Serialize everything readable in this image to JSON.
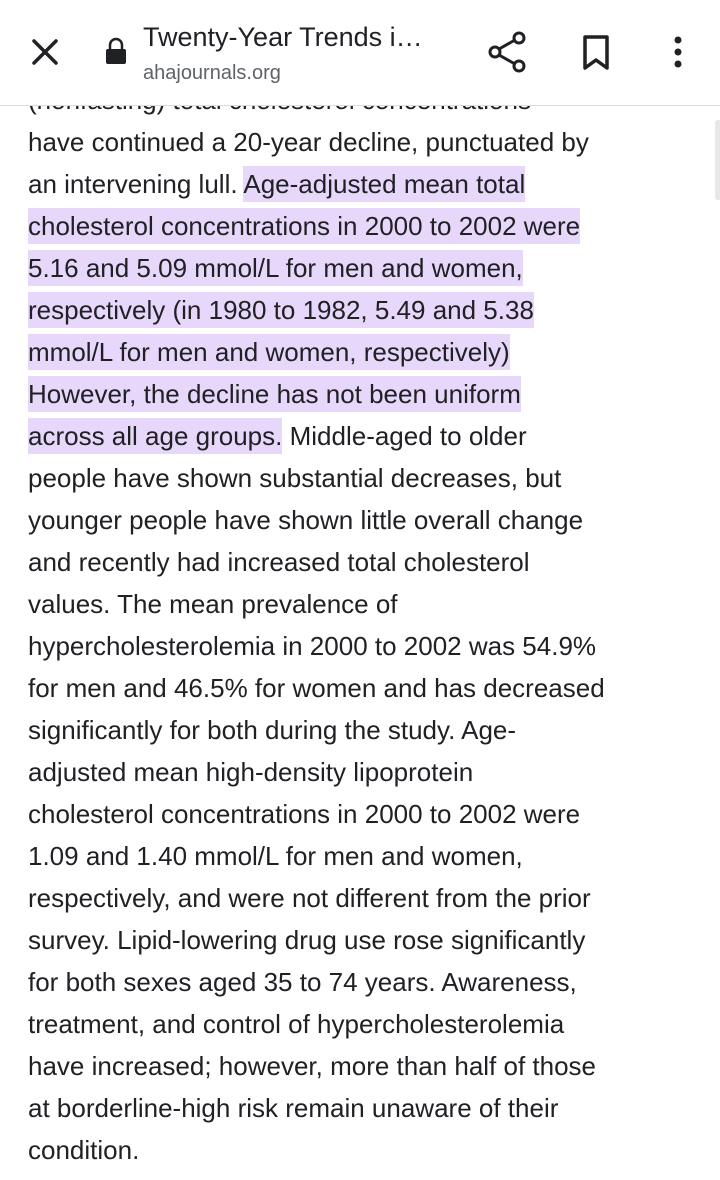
{
  "toolbar": {
    "title": "Twenty-Year Trends i…",
    "url": "ahajournals.org"
  },
  "lines": [
    [
      {
        "text": "(nonfasting) total cholesterol concentrations",
        "highlight": false
      }
    ],
    [
      {
        "text": "have continued a 20-year decline, punctuated by",
        "highlight": false
      }
    ],
    [
      {
        "text": "an intervening lull. ",
        "highlight": false
      },
      {
        "text": "Age-adjusted mean total",
        "highlight": true
      }
    ],
    [
      {
        "text": "cholesterol concentrations in 2000 to 2002 were",
        "highlight": true
      }
    ],
    [
      {
        "text": "5.16 and 5.09 mmol/L for men and women,",
        "highlight": true
      }
    ],
    [
      {
        "text": "respectively (in 1980 to 1982, 5.49 and 5.38",
        "highlight": true
      }
    ],
    [
      {
        "text": "mmol/L for men and women, respectively)",
        "highlight": true
      }
    ],
    [
      {
        "text": "However, the decline has not been uniform",
        "highlight": true
      }
    ],
    [
      {
        "text": "across all age groups.",
        "highlight": true
      },
      {
        "text": " Middle-aged to older",
        "highlight": false
      }
    ],
    [
      {
        "text": "people have shown substantial decreases, but",
        "highlight": false
      }
    ],
    [
      {
        "text": "younger people have shown little overall change",
        "highlight": false
      }
    ],
    [
      {
        "text": "and recently had increased total cholesterol",
        "highlight": false
      }
    ],
    [
      {
        "text": "values. The mean prevalence of",
        "highlight": false
      }
    ],
    [
      {
        "text": "hypercholesterolemia in 2000 to 2002 was 54.9%",
        "highlight": false
      }
    ],
    [
      {
        "text": "for men and 46.5% for women and has decreased",
        "highlight": false
      }
    ],
    [
      {
        "text": "significantly for both during the study. Age-",
        "highlight": false
      }
    ],
    [
      {
        "text": "adjusted mean high-density lipoprotein",
        "highlight": false
      }
    ],
    [
      {
        "text": "cholesterol concentrations in 2000 to 2002 were",
        "highlight": false
      }
    ],
    [
      {
        "text": "1.09 and 1.40 mmol/L for men and women,",
        "highlight": false
      }
    ],
    [
      {
        "text": "respectively, and were not different from the prior",
        "highlight": false
      }
    ],
    [
      {
        "text": "survey. Lipid-lowering drug use rose significantly",
        "highlight": false
      }
    ],
    [
      {
        "text": "for both sexes aged 35 to 74 years. Awareness,",
        "highlight": false
      }
    ],
    [
      {
        "text": "treatment, and control of hypercholesterolemia",
        "highlight": false
      }
    ],
    [
      {
        "text": "have increased; however, more than half of those",
        "highlight": false
      }
    ],
    [
      {
        "text": "at borderline-high risk remain unaware of their",
        "highlight": false
      }
    ],
    [
      {
        "text": "condition.",
        "highlight": false
      }
    ]
  ]
}
